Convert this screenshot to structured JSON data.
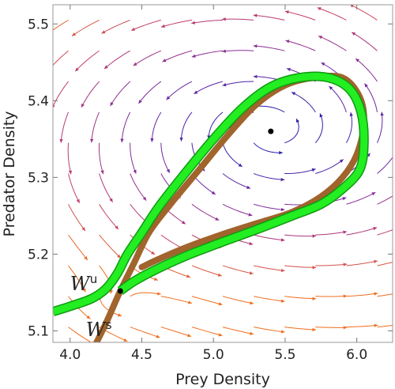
{
  "chart_data": {
    "type": "vector-field",
    "xlabel": "Prey Density",
    "ylabel": "Predator Density",
    "xlim": [
      3.88,
      6.25
    ],
    "ylim": [
      5.085,
      5.525
    ],
    "xticks": [
      {
        "value": 4.0,
        "label": "4.0"
      },
      {
        "value": 4.5,
        "label": "4.5"
      },
      {
        "value": 5.0,
        "label": "5.0"
      },
      {
        "value": 5.5,
        "label": "5.5"
      },
      {
        "value": 6.0,
        "label": "6.0"
      }
    ],
    "yticks": [
      {
        "value": 5.1,
        "label": "5.1"
      },
      {
        "value": 5.2,
        "label": "5.2"
      },
      {
        "value": 5.3,
        "label": "5.3"
      },
      {
        "value": 5.4,
        "label": "5.4"
      },
      {
        "value": 5.5,
        "label": "5.5"
      }
    ],
    "equilibria": [
      {
        "x": 5.4,
        "y": 5.36
      },
      {
        "x": 4.35,
        "y": 5.152
      }
    ],
    "annotations": [
      {
        "base": "W",
        "sup": "u",
        "x": 4.0,
        "y": 5.153
      },
      {
        "base": "W",
        "sup": "s",
        "x": 4.11,
        "y": 5.093
      }
    ],
    "stable_manifold": {
      "color": "#a0642c",
      "x": [
        4.15,
        4.25,
        4.35,
        4.45,
        4.55,
        4.7,
        4.9,
        5.1,
        5.3,
        5.5,
        5.7,
        5.9,
        6.02,
        6.05,
        6.0,
        5.9,
        5.75,
        5.55,
        5.3,
        5.05,
        4.8,
        4.6,
        4.5
      ],
      "y": [
        5.072,
        5.11,
        5.152,
        5.19,
        5.228,
        5.265,
        5.31,
        5.355,
        5.395,
        5.42,
        5.43,
        5.43,
        5.405,
        5.37,
        5.33,
        5.3,
        5.275,
        5.255,
        5.24,
        5.225,
        5.208,
        5.192,
        5.183
      ]
    },
    "unstable_manifold": {
      "color": "#22ee22",
      "x": [
        3.88,
        4.0,
        4.15,
        4.25,
        4.33,
        4.4,
        4.5,
        4.62,
        4.8,
        5.0,
        5.2,
        5.4,
        5.6,
        5.8,
        5.95,
        6.03,
        6.05,
        6.02,
        5.9,
        5.75,
        5.55,
        5.3,
        5.05,
        4.8,
        4.6,
        4.45,
        4.35
      ],
      "y": [
        5.125,
        5.132,
        5.142,
        5.155,
        5.175,
        5.2,
        5.228,
        5.262,
        5.305,
        5.35,
        5.39,
        5.418,
        5.43,
        5.43,
        5.415,
        5.385,
        5.345,
        5.31,
        5.285,
        5.265,
        5.25,
        5.232,
        5.215,
        5.197,
        5.18,
        5.165,
        5.152
      ]
    },
    "grid": false,
    "legend": "none"
  }
}
